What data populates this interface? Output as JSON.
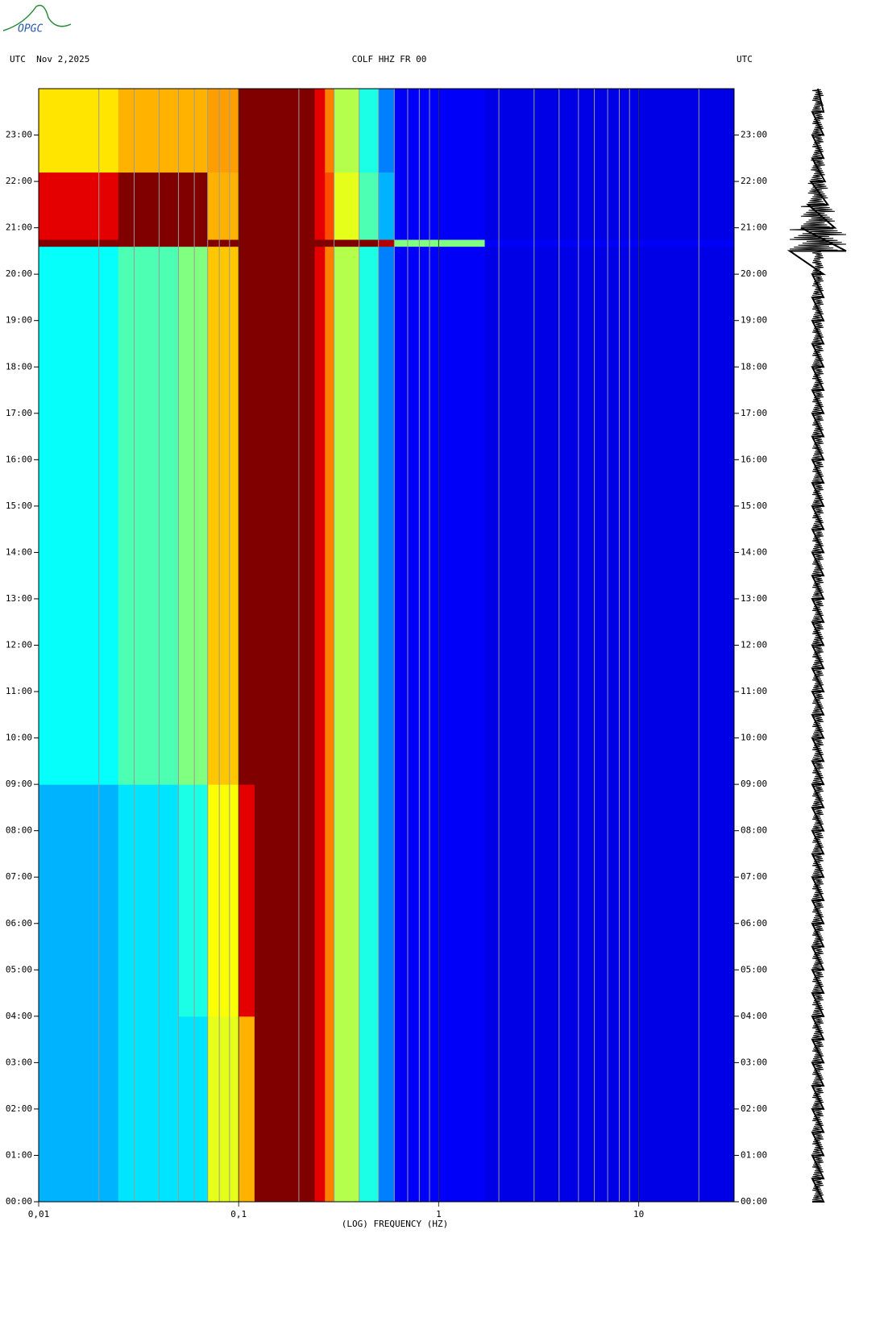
{
  "logo": "OPGC",
  "chart_data": {
    "type": "spectrogram",
    "title_left": "UTC  Nov 2,2025",
    "title": "COLF HHZ FR 00",
    "title_right": "UTC",
    "xlabel": "(LOG) FREQUENCY (HZ)",
    "xscale": "log",
    "xlim": [
      0.01,
      30
    ],
    "xticks": [
      {
        "value": 0.01,
        "label": "0,01"
      },
      {
        "value": 0.1,
        "label": "0,1"
      },
      {
        "value": 1,
        "label": "1"
      },
      {
        "value": 10,
        "label": "10"
      }
    ],
    "xminor": [
      0.02,
      0.03,
      0.04,
      0.05,
      0.06,
      0.07,
      0.08,
      0.09,
      0.2,
      0.3,
      0.4,
      0.5,
      0.6,
      0.7,
      0.8,
      0.9,
      2,
      3,
      4,
      5,
      6,
      7,
      8,
      9,
      20
    ],
    "grid": true,
    "ylim": [
      0,
      24
    ],
    "yticks": [
      {
        "value": 0,
        "label": "00:00"
      },
      {
        "value": 1,
        "label": "01:00"
      },
      {
        "value": 2,
        "label": "02:00"
      },
      {
        "value": 3,
        "label": "03:00"
      },
      {
        "value": 4,
        "label": "04:00"
      },
      {
        "value": 5,
        "label": "05:00"
      },
      {
        "value": 6,
        "label": "06:00"
      },
      {
        "value": 7,
        "label": "07:00"
      },
      {
        "value": 8,
        "label": "08:00"
      },
      {
        "value": 9,
        "label": "09:00"
      },
      {
        "value": 10,
        "label": "10:00"
      },
      {
        "value": 11,
        "label": "11:00"
      },
      {
        "value": 12,
        "label": "12:00"
      },
      {
        "value": 13,
        "label": "13:00"
      },
      {
        "value": 14,
        "label": "14:00"
      },
      {
        "value": 15,
        "label": "15:00"
      },
      {
        "value": 16,
        "label": "16:00"
      },
      {
        "value": 17,
        "label": "17:00"
      },
      {
        "value": 18,
        "label": "18:00"
      },
      {
        "value": 19,
        "label": "19:00"
      },
      {
        "value": 20,
        "label": "20:00"
      },
      {
        "value": 21,
        "label": "21:00"
      },
      {
        "value": 22,
        "label": "22:00"
      },
      {
        "value": 23,
        "label": "23:00"
      }
    ],
    "freq_edges": [
      0.01,
      0.025,
      0.05,
      0.07,
      0.1,
      0.12,
      0.24,
      0.27,
      0.3,
      0.4,
      0.5,
      0.6,
      1.7,
      30
    ],
    "time_edges": [
      0,
      4,
      9,
      20.6,
      20.75,
      22.2,
      24
    ],
    "zlim": [
      0,
      1
    ],
    "z": [
      [
        0.3,
        0.35,
        0.35,
        0.6,
        0.7,
        1,
        0.9,
        0.75,
        0.55,
        0.4,
        0.25,
        0.12,
        0.1
      ],
      [
        0.3,
        0.35,
        0.4,
        0.62,
        0.9,
        1,
        0.9,
        0.75,
        0.55,
        0.4,
        0.25,
        0.12,
        0.1
      ],
      [
        0.38,
        0.45,
        0.5,
        0.68,
        1,
        1,
        0.9,
        0.75,
        0.55,
        0.4,
        0.25,
        0.12,
        0.1
      ],
      [
        1,
        1,
        1,
        1,
        1,
        1,
        1,
        1,
        1,
        1,
        0.95,
        0.5,
        0.12
      ],
      [
        0.9,
        1,
        1,
        0.7,
        1,
        1,
        0.9,
        0.8,
        0.6,
        0.45,
        0.3,
        0.12,
        0.1
      ],
      [
        0.65,
        0.7,
        0.7,
        0.72,
        1,
        1,
        0.9,
        0.75,
        0.55,
        0.4,
        0.25,
        0.12,
        0.1
      ]
    ],
    "trace": {
      "t": [
        0,
        0.5,
        1,
        1.5,
        2,
        2.5,
        3,
        3.5,
        4,
        4.5,
        5,
        5.5,
        6,
        6.5,
        7,
        7.5,
        8,
        8.5,
        9,
        9.5,
        10,
        10.5,
        11,
        11.5,
        12,
        12.5,
        13,
        13.5,
        14,
        14.5,
        15,
        15.5,
        16,
        16.5,
        17,
        17.5,
        18,
        18.5,
        19,
        19.5,
        20,
        20.5,
        21,
        21.5,
        22,
        22.5,
        23,
        23.5
      ],
      "amplitude": [
        0.2,
        0.2,
        0.2,
        0.2,
        0.2,
        0.2,
        0.2,
        0.2,
        0.2,
        0.2,
        0.2,
        0.2,
        0.2,
        0.2,
        0.2,
        0.2,
        0.2,
        0.2,
        0.2,
        0.2,
        0.2,
        0.2,
        0.2,
        0.2,
        0.2,
        0.2,
        0.2,
        0.2,
        0.2,
        0.2,
        0.2,
        0.2,
        0.2,
        0.2,
        0.2,
        0.2,
        0.2,
        0.2,
        0.2,
        0.2,
        0.2,
        1,
        0.6,
        0.35,
        0.25,
        0.2,
        0.2,
        0.2
      ],
      "color": "#000000"
    }
  }
}
